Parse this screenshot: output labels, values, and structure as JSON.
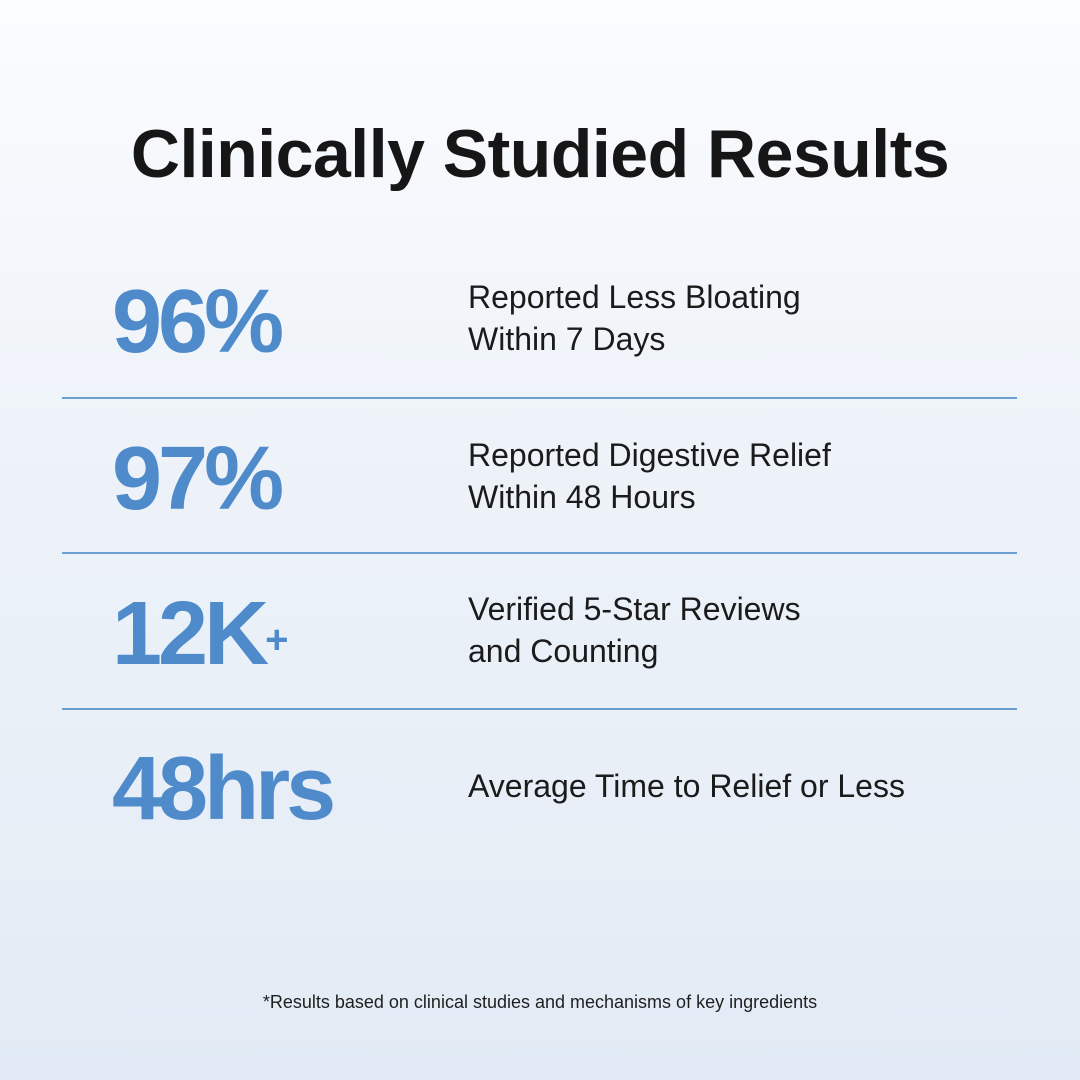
{
  "title": "Clinically Studied Results",
  "stats": [
    {
      "value": "96%",
      "line1": "Reported Less Bloating",
      "line2": "Within 7 Days"
    },
    {
      "value": "97%",
      "line1": "Reported Digestive Relief",
      "line2": "Within 48 Hours"
    },
    {
      "value": "12K",
      "value_suffix": "+",
      "line1": "Verified 5-Star Reviews",
      "line2": "and Counting"
    },
    {
      "value": "48hrs",
      "line1": "Average Time to Relief or Less"
    }
  ],
  "footnote": "*Results based on clinical studies and mechanisms of key ingredients",
  "colors": {
    "accent": "#4f8bcb",
    "divider": "#6a9fcf",
    "text": "#161616",
    "background_top": "#fbfcfe",
    "background_bottom": "#e2ebf5"
  }
}
